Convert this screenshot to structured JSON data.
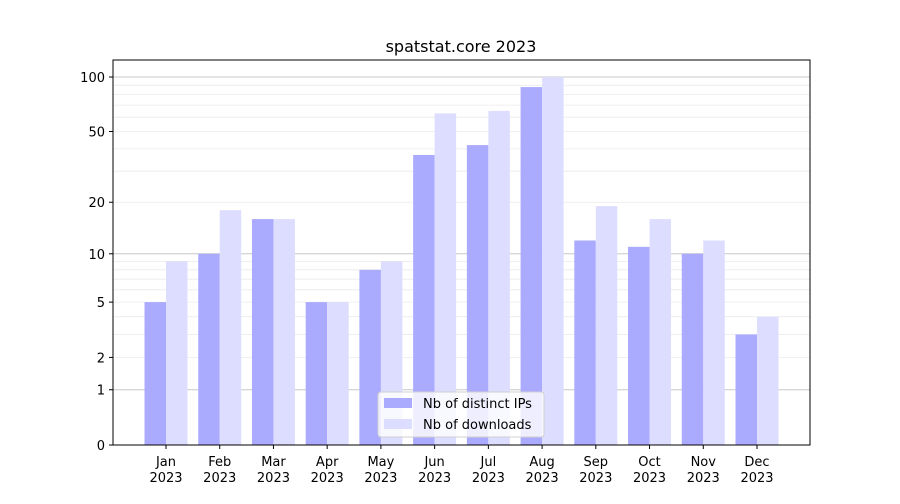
{
  "chart_data": {
    "type": "bar",
    "title": "spatstat.core 2023",
    "xlabel": "",
    "ylabel": "",
    "yscale": "log10(1+y)",
    "ylim": [
      0,
      100
    ],
    "yticks": [
      0,
      1,
      2,
      5,
      10,
      20,
      50,
      100
    ],
    "grid": true,
    "legend_position": "bottom-center",
    "categories": [
      "Jan\n2023",
      "Feb\n2023",
      "Mar\n2023",
      "Apr\n2023",
      "May\n2023",
      "Jun\n2023",
      "Jul\n2023",
      "Aug\n2023",
      "Sep\n2023",
      "Oct\n2023",
      "Nov\n2023",
      "Dec\n2023"
    ],
    "series": [
      {
        "name": "Nb of distinct IPs",
        "color": "#aaaaff",
        "values": [
          5,
          10,
          16,
          5,
          8,
          37,
          42,
          88,
          12,
          11,
          10,
          3
        ]
      },
      {
        "name": "Nb of downloads",
        "color": "#ddddff",
        "values": [
          9,
          18,
          16,
          5,
          9,
          63,
          65,
          100,
          19,
          16,
          12,
          4
        ]
      }
    ]
  }
}
